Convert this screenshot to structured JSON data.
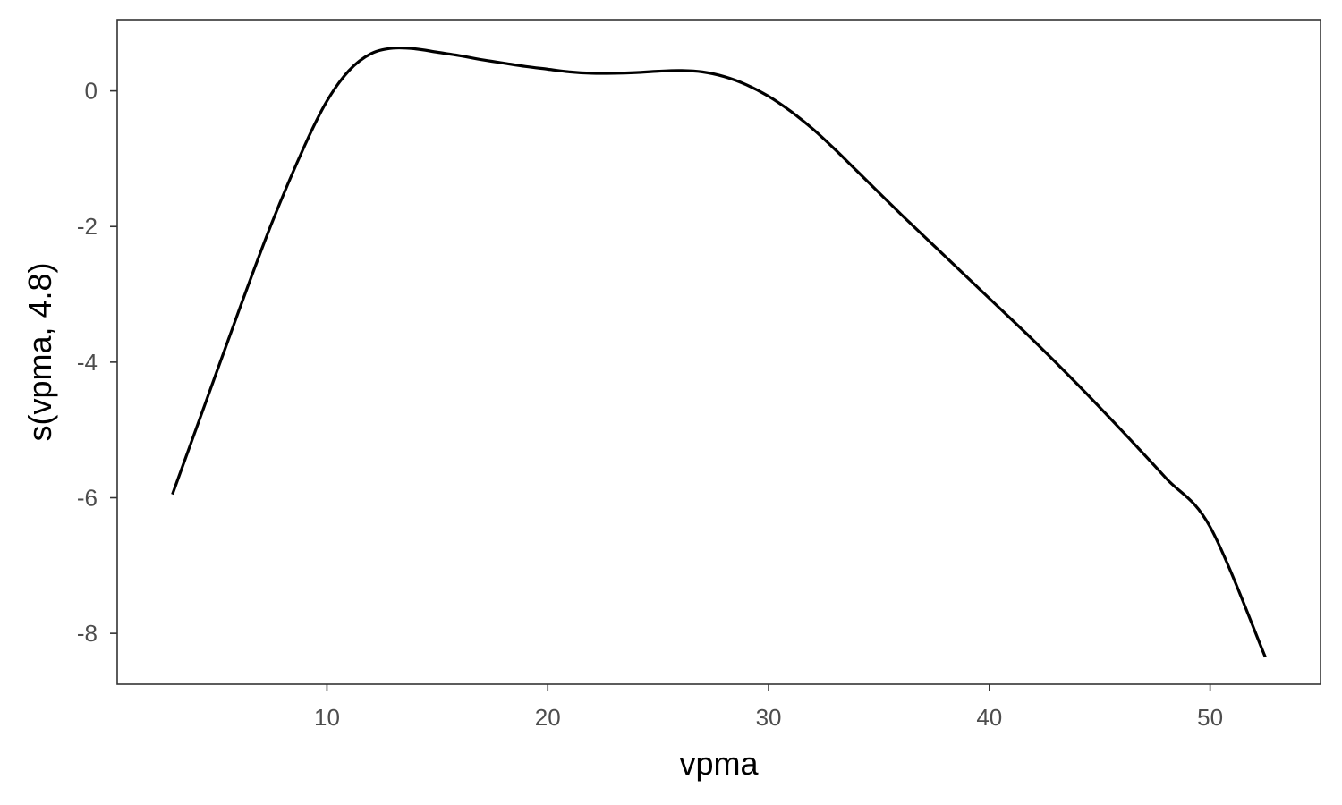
{
  "chart_data": {
    "type": "line",
    "title": "",
    "xlabel": "vpma",
    "ylabel": "s(vpma, 4.8)",
    "xlim": [
      0.5,
      55
    ],
    "ylim": [
      -8.75,
      1.05
    ],
    "x_ticks": [
      10,
      20,
      30,
      40,
      50
    ],
    "y_ticks": [
      0,
      -2,
      -4,
      -6,
      -8
    ],
    "x_tick_labels": [
      "10",
      "20",
      "30",
      "40",
      "50"
    ],
    "y_tick_labels": [
      "0",
      "-2",
      "-4",
      "-6",
      "-8"
    ],
    "grid": false,
    "legend": "none",
    "series": [
      {
        "color": "#000000",
        "x": [
          3.0,
          4.5,
          6.0,
          7.5,
          9.0,
          10.0,
          11.0,
          12.0,
          13.0,
          14.0,
          15.0,
          16.0,
          17.0,
          18.0,
          19.0,
          20.0,
          21.0,
          22.0,
          23.0,
          24.0,
          25.0,
          26.0,
          27.0,
          28.0,
          29.0,
          30.0,
          31.0,
          32.0,
          33.0,
          34.0,
          36.0,
          38.0,
          40.0,
          42.0,
          44.0,
          46.0,
          48.0,
          50.0,
          52.5
        ],
        "y": [
          -5.95,
          -4.6,
          -3.25,
          -1.95,
          -0.8,
          -0.15,
          0.3,
          0.55,
          0.63,
          0.62,
          0.57,
          0.52,
          0.46,
          0.41,
          0.36,
          0.32,
          0.28,
          0.26,
          0.26,
          0.27,
          0.29,
          0.3,
          0.28,
          0.21,
          0.09,
          -0.08,
          -0.3,
          -0.56,
          -0.86,
          -1.18,
          -1.82,
          -2.44,
          -3.06,
          -3.68,
          -4.33,
          -5.01,
          -5.71,
          -6.43,
          -8.35
        ]
      }
    ]
  }
}
